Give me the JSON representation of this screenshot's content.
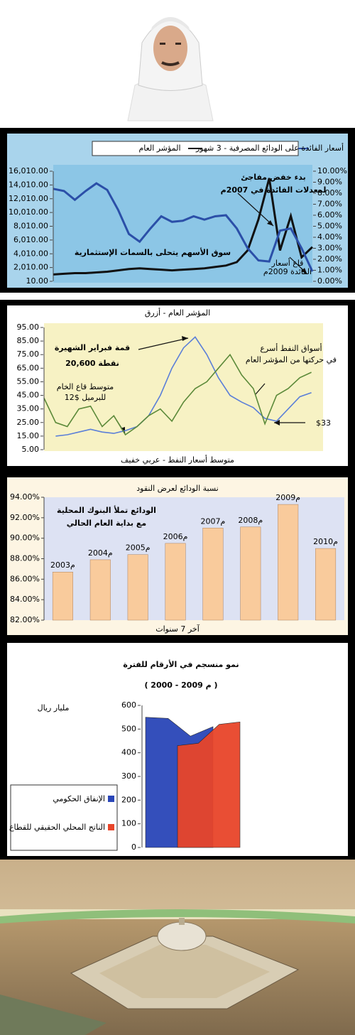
{
  "chart_data": [
    {
      "type": "line",
      "categories": [
        null,
        null,
        null,
        null,
        null,
        null,
        null,
        null,
        null,
        null,
        null,
        null,
        null,
        null,
        null,
        null,
        null,
        null,
        null,
        null,
        null,
        null,
        null,
        null,
        null
      ],
      "series": [
        {
          "name": "المؤشر العام",
          "color": "#111111",
          "values": [
            1000,
            1100,
            1200,
            1200,
            1300,
            1400,
            1600,
            1800,
            1900,
            1800,
            1700,
            1600,
            1700,
            1800,
            1900,
            2100,
            2300,
            2800,
            4500,
            9000,
            15000,
            4500,
            9500,
            3500,
            5000
          ]
        },
        {
          "name": "أسعار الفائدة على الودائع المصرفية - 3 شهور",
          "color": "#2b4fa8",
          "axis": "y2",
          "values": [
            8.4,
            8.2,
            7.4,
            8.2,
            8.9,
            8.3,
            6.5,
            4.3,
            3.6,
            4.8,
            5.9,
            5.4,
            5.5,
            5.9,
            5.6,
            5.9,
            6.0,
            4.8,
            3.0,
            1.9,
            1.8,
            4.6,
            4.8,
            3.0,
            0.9
          ]
        }
      ],
      "ylim": [
        10,
        16010
      ],
      "yticks": [
        {
          "value": 10,
          "label": "10.00"
        },
        {
          "value": 2010,
          "label": "2,010.00"
        },
        {
          "value": 4010,
          "label": "4,010.00"
        },
        {
          "value": 6010,
          "label": "6,010.00"
        },
        {
          "value": 8010,
          "label": "8,010.00"
        },
        {
          "value": 10010,
          "label": "10,010.00"
        },
        {
          "value": 12010,
          "label": "12,010.00"
        },
        {
          "value": 14010,
          "label": "14,010.00"
        },
        {
          "value": 16010,
          "label": "16,010.00"
        }
      ],
      "y2lim": [
        0,
        10
      ],
      "y2ticks": [
        {
          "value": 0,
          "label": "0.00%"
        },
        {
          "value": 1,
          "label": "1.00%"
        },
        {
          "value": 2,
          "label": "2.00%"
        },
        {
          "value": 3,
          "label": "3.00%"
        },
        {
          "value": 4,
          "label": "4.00%"
        },
        {
          "value": 5,
          "label": "5.00%"
        },
        {
          "value": 6,
          "label": "6.00%"
        },
        {
          "value": 7,
          "label": "7.00%"
        },
        {
          "value": 8,
          "label": "8.00%"
        },
        {
          "value": 9,
          "label": "9.00%"
        },
        {
          "value": 10,
          "label": "10.00%"
        }
      ],
      "annotations": [
        "بدء خفض مفاجئ",
        "لمعدلات الفائدة في 2007م",
        "سوق الأسهم يتحلى بالسمات الإستثمارية",
        "قاع أسعار",
        "الفائدة 2009م"
      ]
    },
    {
      "type": "line",
      "title": "المؤشر العام - أزرق",
      "x_label": "متوسط أسعار النفط - عربي خفيف",
      "categories": [
        null,
        null,
        null,
        null,
        null,
        null,
        null,
        null,
        null,
        null,
        null,
        null,
        null,
        null,
        null,
        null,
        null,
        null,
        null,
        null,
        null,
        null,
        null,
        null,
        null
      ],
      "series": [
        {
          "color": "#5b7fd8",
          "values": [
            null,
            15,
            16,
            18,
            20,
            18,
            17,
            19,
            22,
            30,
            45,
            65,
            80,
            88,
            75,
            58,
            45,
            40,
            36,
            28,
            26,
            35,
            44,
            47,
            null
          ]
        },
        {
          "color": "#5c8a3a",
          "values": [
            43,
            25,
            22,
            35,
            37,
            22,
            30,
            16,
            22,
            30,
            35,
            26,
            40,
            50,
            55,
            65,
            75,
            60,
            50,
            24,
            45,
            50,
            58,
            62,
            null
          ]
        }
      ],
      "ylim": [
        5,
        95
      ],
      "yticks": [
        {
          "value": 5,
          "label": "5.00"
        },
        {
          "value": 15,
          "label": "15.00"
        },
        {
          "value": 25,
          "label": "25.00"
        },
        {
          "value": 35,
          "label": "35.00"
        },
        {
          "value": 45,
          "label": "45.00"
        },
        {
          "value": 55,
          "label": "55.00"
        },
        {
          "value": 65,
          "label": "65.00"
        },
        {
          "value": 75,
          "label": "75.00"
        },
        {
          "value": 85,
          "label": "85.00"
        },
        {
          "value": 95,
          "label": "95.00"
        }
      ],
      "annotations": [
        "قمة فبراير الشهيرة",
        "20,600 نقطة",
        "متوسط قاع الخام",
        "12$ للبرميل",
        "أسواق النفط أسرع",
        "في حركتها من المؤشر العام",
        "$33"
      ]
    },
    {
      "type": "bar",
      "title": "نسبة الودائع لعرض النقود",
      "x_label": "آخر 7 سنوات",
      "categories": [
        "2003م",
        "2004م",
        "2005م",
        "2006م",
        "2007م",
        "2008م",
        "2009م",
        "2010م"
      ],
      "values": [
        86.7,
        87.9,
        88.4,
        89.5,
        91.0,
        91.1,
        93.3,
        89.0
      ],
      "color": "#f9cb9c",
      "ylim": [
        82,
        94
      ],
      "yticks": [
        {
          "value": 82,
          "label": "82.00%"
        },
        {
          "value": 84,
          "label": "84.00%"
        },
        {
          "value": 86,
          "label": "86.00%"
        },
        {
          "value": 88,
          "label": "88.00%"
        },
        {
          "value": 90,
          "label": "90.00%"
        },
        {
          "value": 92,
          "label": "92.00%"
        },
        {
          "value": 94,
          "label": "94.00%"
        }
      ],
      "annotations": [
        "الودائع تملأ البنوك المحلية",
        "مع بداية العام الحالي"
      ]
    },
    {
      "type": "area",
      "title": "نمو منسجم في الأرقام للفترة",
      "subtitle": "( 2000 - 2009 م )",
      "y_label": "مليار ريال",
      "categories": [
        null,
        null,
        null,
        null
      ],
      "series": [
        {
          "name": "الإنفاق الحكومي",
          "color": "#2a46b8",
          "values": [
            550,
            545,
            470,
            510
          ]
        },
        {
          "name": "الناتج المحلي الحقيقي للقطاع الخاص",
          "color": "#e8452a",
          "values": [
            430,
            440,
            520,
            530
          ]
        }
      ],
      "ylim": [
        0,
        600
      ],
      "yticks": [
        0,
        100,
        200,
        300,
        400,
        500,
        600
      ]
    }
  ]
}
